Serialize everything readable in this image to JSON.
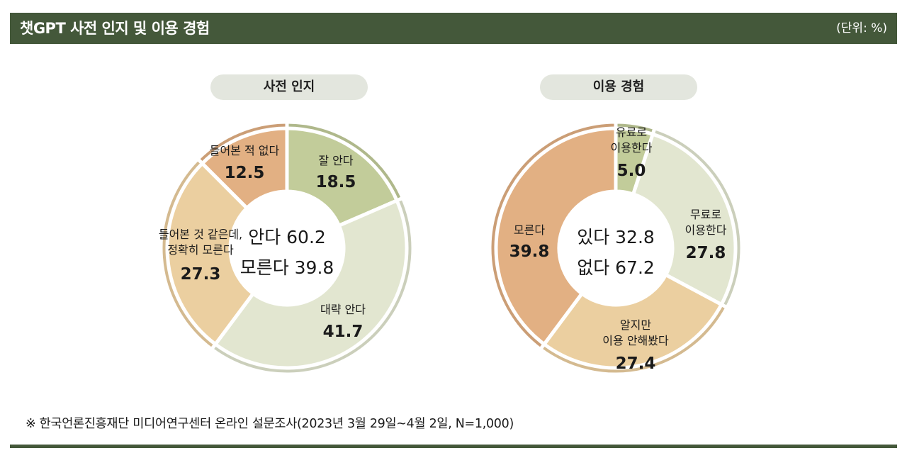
{
  "header": {
    "title": "챗GPT 사전 인지 및 이용 경험",
    "unit": "(단위: %)"
  },
  "colors": {
    "header_bg": "#44583a",
    "pill_bg": "#e3e6de"
  },
  "chart_data": [
    {
      "type": "pie",
      "title": "사전 인지",
      "center_text": [
        "안다 60.2",
        "모른다 39.8"
      ],
      "slices": [
        {
          "label": "잘 안다",
          "value": 18.5,
          "value_text": "18.5",
          "color": "#c2cc9a"
        },
        {
          "label": "대략 안다",
          "value": 41.7,
          "value_text": "41.7",
          "color": "#e2e6d0"
        },
        {
          "label": "들어본 것 같은데, 정확히 모른다",
          "label_lines": [
            "들어본 것 같은데,",
            "정확히 모른다"
          ],
          "value": 27.3,
          "value_text": "27.3",
          "color": "#ebcfa0"
        },
        {
          "label": "들어본 적 없다",
          "value": 12.5,
          "value_text": "12.5",
          "color": "#e2b083"
        }
      ]
    },
    {
      "type": "pie",
      "title": "이용 경험",
      "center_text": [
        "있다 32.8",
        "없다 67.2"
      ],
      "slices": [
        {
          "label": "유료로 이용한다",
          "label_lines": [
            "유료로",
            "이용한다"
          ],
          "value": 5.0,
          "value_text": "5.0",
          "color": "#c2cc9a"
        },
        {
          "label": "무료로 이용한다",
          "label_lines": [
            "무료로",
            "이용한다"
          ],
          "value": 27.8,
          "value_text": "27.8",
          "color": "#e2e6d0"
        },
        {
          "label": "알지만 이용 안해봤다",
          "label_lines": [
            "알지만",
            "이용 안해봤다"
          ],
          "value": 27.4,
          "value_text": "27.4",
          "color": "#ebcfa0"
        },
        {
          "label": "모른다",
          "value": 39.8,
          "value_text": "39.8",
          "color": "#e2b083"
        }
      ]
    }
  ],
  "footnote": "※ 한국언론진흥재단 미디어연구센터 온라인 설문조사(2023년 3월 29일~4월 2일, N=1,000)"
}
